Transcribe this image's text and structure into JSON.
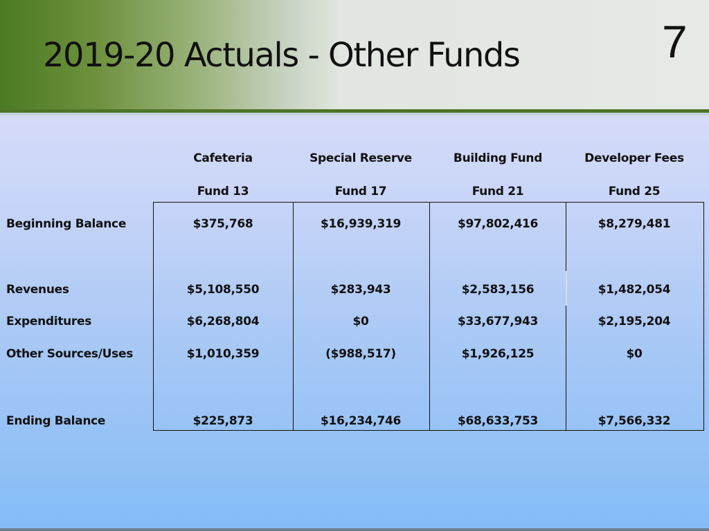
{
  "slide": {
    "title": "2019-20 Actuals - Other Funds",
    "number": "7"
  },
  "table": {
    "columns": [
      {
        "name": "Cafeteria",
        "fund": "Fund 13"
      },
      {
        "name": "Special Reserve",
        "fund": "Fund 17"
      },
      {
        "name": "Building Fund",
        "fund": "Fund 21"
      },
      {
        "name": "Developer Fees",
        "fund": "Fund 25"
      }
    ],
    "rows": [
      {
        "label": "Beginning Balance",
        "values": [
          "$375,768",
          "$16,939,319",
          "$97,802,416",
          "$8,279,481"
        ]
      },
      {
        "label": "Revenues",
        "values": [
          "$5,108,550",
          "$283,943",
          "$2,583,156",
          "$1,482,054"
        ]
      },
      {
        "label": "Expenditures",
        "values": [
          "$6,268,804",
          "$0",
          "$33,677,943",
          "$2,195,204"
        ]
      },
      {
        "label": "Other Sources/Uses",
        "values": [
          "$1,010,359",
          "($988,517)",
          "$1,926,125",
          "$0"
        ]
      },
      {
        "label": "Ending Balance",
        "values": [
          "$225,873",
          "$16,234,746",
          "$68,633,753",
          "$7,566,332"
        ]
      }
    ]
  },
  "colors": {
    "header_green": "#4b7a22",
    "header_rule": "#4e7428",
    "background_top": "#e3e4fa",
    "background_bottom": "#84bcf7"
  }
}
